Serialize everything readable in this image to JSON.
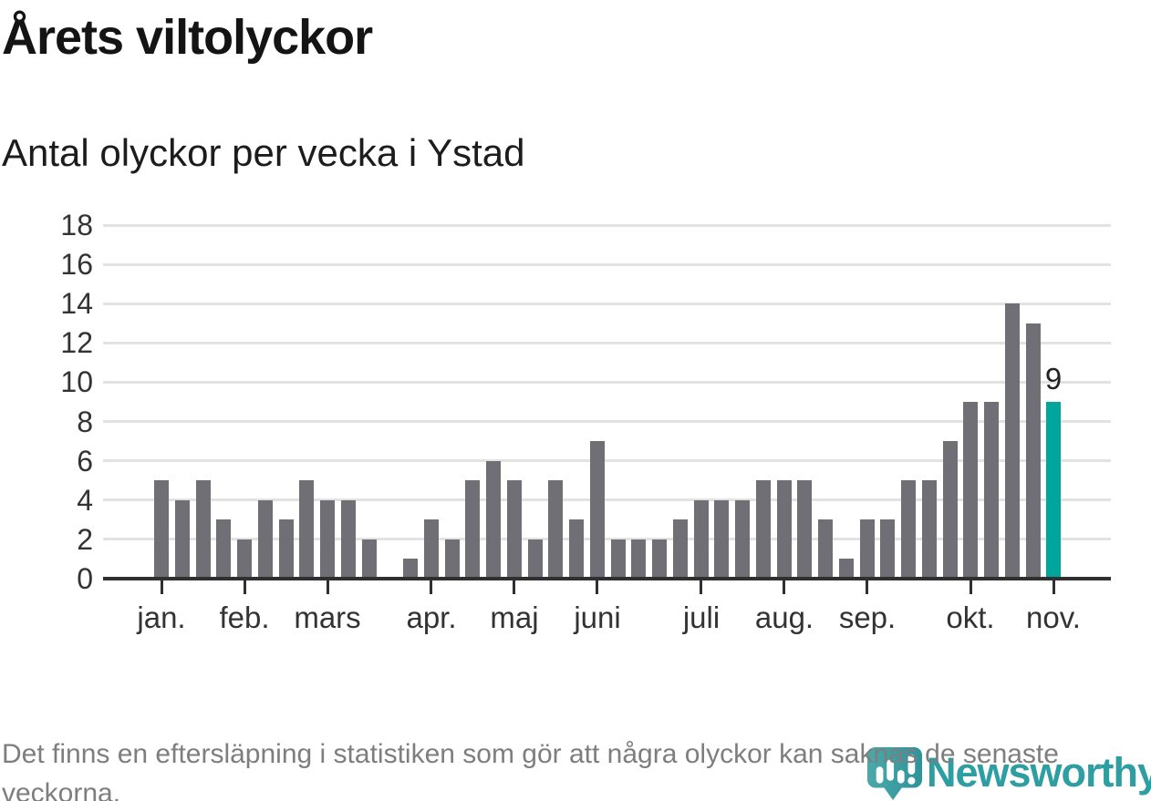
{
  "header": {
    "title": "Årets viltolyckor",
    "subtitle": "Antal olyckor per vecka i Ystad"
  },
  "footer": {
    "note": "Det finns en eftersläpning i statistiken som gör att några olyckor kan saknas de senaste veckorna."
  },
  "logo": {
    "text": "Newsworthy",
    "icon": "newsworthy-pin-barchart-icon",
    "text_color": "#2d9ea1",
    "icon_color_light": "#4aa9a9",
    "icon_color_dark": "#2e939b"
  },
  "colors": {
    "bar": "#6f6f75",
    "highlight": "#00a59b",
    "gridline": "#e2e2e2",
    "axis": "#303030",
    "axis_text": "#333333",
    "footer_text": "#7e7e7e"
  },
  "chart_data": {
    "type": "bar",
    "title": "Årets viltolyckor",
    "subtitle": "Antal olyckor per vecka i Ystad",
    "ylabel": "",
    "xlabel": "",
    "ylim": [
      0,
      18
    ],
    "yticks": [
      0,
      2,
      4,
      6,
      8,
      10,
      12,
      14,
      16,
      18
    ],
    "grid": "horizontal",
    "legend": "none",
    "unit": "olyckor per vecka",
    "values": [
      5,
      4,
      5,
      3,
      2,
      4,
      3,
      5,
      4,
      4,
      2,
      null,
      1,
      3,
      2,
      5,
      6,
      5,
      2,
      5,
      3,
      7,
      2,
      2,
      2,
      3,
      4,
      4,
      4,
      5,
      5,
      5,
      3,
      1,
      3,
      3,
      5,
      5,
      7,
      9,
      9,
      14,
      13,
      9
    ],
    "gap_note": "one week slot has no bar (missing data)",
    "months": [
      {
        "label": "jan.",
        "slot": 0,
        "week_values": [
          5,
          4,
          5,
          3
        ]
      },
      {
        "label": "feb.",
        "slot": 4,
        "week_values": [
          2,
          4,
          3,
          5
        ]
      },
      {
        "label": "mars",
        "slot": 8,
        "week_values": [
          4,
          4,
          2,
          null,
          1
        ]
      },
      {
        "label": "apr.",
        "slot": 13,
        "week_values": [
          3,
          2,
          5,
          6
        ]
      },
      {
        "label": "maj",
        "slot": 17,
        "week_values": [
          5,
          2,
          5,
          3
        ]
      },
      {
        "label": "juni",
        "slot": 21,
        "week_values": [
          7,
          2,
          2,
          2,
          3
        ]
      },
      {
        "label": "juli",
        "slot": 26,
        "week_values": [
          4,
          4,
          4,
          5
        ]
      },
      {
        "label": "aug.",
        "slot": 30,
        "week_values": [
          5,
          5,
          3,
          1
        ]
      },
      {
        "label": "sep.",
        "slot": 34,
        "week_values": [
          3,
          3,
          5,
          5,
          7
        ]
      },
      {
        "label": "okt.",
        "slot": 39,
        "week_values": [
          9,
          9,
          14,
          13
        ]
      },
      {
        "label": "nov.",
        "slot": 43,
        "week_values": [
          9
        ]
      }
    ],
    "highlight": {
      "index": 43,
      "value": 9,
      "label": "9",
      "color": "#00a59b"
    }
  }
}
